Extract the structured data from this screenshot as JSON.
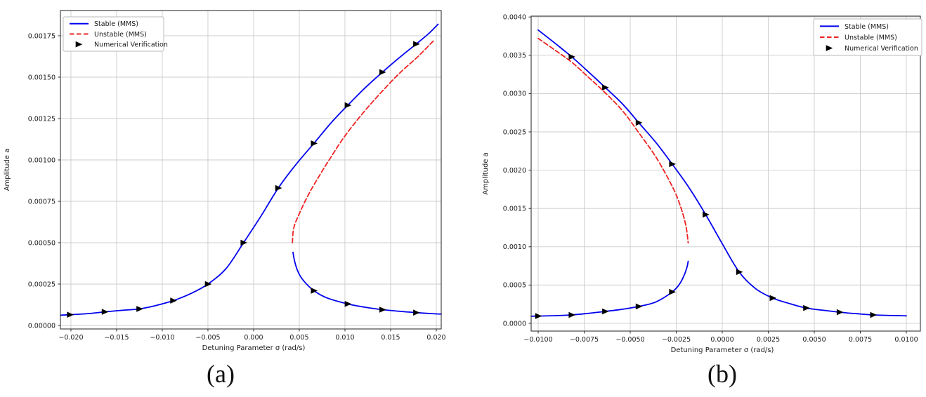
{
  "captions": {
    "a": "(a)",
    "b": "(b)"
  },
  "colors": {
    "stable": "#0000ee",
    "unstable": "#ee2222",
    "marker": "#000000",
    "grid": "#cccccc",
    "spine": "#333333",
    "text": "#1a1a1a"
  },
  "legend": {
    "items": [
      {
        "label": "Stable (MMS)",
        "style": "line",
        "color": "#0000ee"
      },
      {
        "label": "Unstable (MMS)",
        "style": "dashed",
        "color": "#ee2222"
      },
      {
        "label": "Numerical Verification",
        "style": "marker",
        "color": "#000000"
      }
    ]
  },
  "chart_data": [
    {
      "id": "a",
      "type": "line",
      "title": "",
      "xlabel": "Detuning Parameter σ (rad/s)",
      "ylabel": "Amplitude a",
      "xlim": [
        -0.02115,
        0.02054
      ],
      "ylim": [
        -2.12e-05,
        0.0019025
      ],
      "grid": true,
      "legend_position": "upper-left",
      "xticks": [
        -0.02,
        -0.015,
        -0.01,
        -0.005,
        0.0,
        0.005,
        0.01,
        0.015,
        0.02
      ],
      "xtick_labels": [
        "−0.020",
        "−0.015",
        "−0.010",
        "−0.005",
        "0.000",
        "0.005",
        "0.010",
        "0.015",
        "0.020"
      ],
      "yticks": [
        0.0,
        0.00025,
        0.0005,
        0.00075,
        0.001,
        0.00125,
        0.0015,
        0.00175
      ],
      "ytick_labels": [
        "0.00000",
        "0.00025",
        "0.00050",
        "0.00075",
        "0.00100",
        "0.00125",
        "0.00150",
        "0.00175"
      ],
      "series": [
        {
          "name": "Stable (MMS) upper branch",
          "kind": "line",
          "color": "#0000ee",
          "dash": null,
          "width": 1.8,
          "points": [
            [
              -0.02115,
              6.2e-05
            ],
            [
              -0.0201,
              6.5e-05
            ],
            [
              -0.018,
              7.2e-05
            ],
            [
              -0.0163,
              8.2e-05
            ],
            [
              -0.0145,
              9.1e-05
            ],
            [
              -0.0125,
              0.0001
            ],
            [
              -0.0106,
              0.000122
            ],
            [
              -0.0088,
              0.00015
            ],
            [
              -0.0069,
              0.000192
            ],
            [
              -0.005,
              0.00025
            ],
            [
              -0.003,
              0.000345
            ],
            [
              -0.0011,
              0.0005
            ],
            [
              0.0008,
              0.00066
            ],
            [
              0.0027,
              0.00083
            ],
            [
              0.0046,
              0.00097
            ],
            [
              0.0066,
              0.0011
            ],
            [
              0.0085,
              0.001225
            ],
            [
              0.0103,
              0.00133
            ],
            [
              0.0122,
              0.001435
            ],
            [
              0.0141,
              0.00153
            ],
            [
              0.016,
              0.00162
            ],
            [
              0.0178,
              0.0017
            ],
            [
              0.0192,
              0.001765
            ],
            [
              0.0202,
              0.00182
            ]
          ]
        },
        {
          "name": "Stable (MMS) lower branch",
          "kind": "line",
          "color": "#0000ee",
          "dash": null,
          "width": 1.8,
          "points": [
            [
              0.00431,
              0.000442
            ],
            [
              0.0045,
              0.000385
            ],
            [
              0.0049,
              0.00032
            ],
            [
              0.0055,
              0.000268
            ],
            [
              0.0066,
              0.00021
            ],
            [
              0.008,
              0.000167
            ],
            [
              0.0103,
              0.00013
            ],
            [
              0.0122,
              0.00011
            ],
            [
              0.0141,
              9.55e-05
            ],
            [
              0.016,
              8.55e-05
            ],
            [
              0.0178,
              7.75e-05
            ],
            [
              0.0195,
              7.15e-05
            ],
            [
              0.02054,
              6.85e-05
            ]
          ]
        },
        {
          "name": "Unstable (MMS)",
          "kind": "line",
          "color": "#ee2222",
          "dash": [
            6.5,
            3.5
          ],
          "width": 1.8,
          "points": [
            [
              0.00425,
              0.0005
            ],
            [
              0.0044,
              0.00059
            ],
            [
              0.005,
              0.000675
            ],
            [
              0.006,
              0.00079
            ],
            [
              0.0072,
              0.000905
            ],
            [
              0.0085,
              0.00102
            ],
            [
              0.01,
              0.001145
            ],
            [
              0.012,
              0.001285
            ],
            [
              0.014,
              0.00141
            ],
            [
              0.016,
              0.001525
            ],
            [
              0.018,
              0.001625
            ],
            [
              0.0197,
              0.00172
            ]
          ]
        },
        {
          "name": "Numerical Verification upper",
          "kind": "scatter",
          "marker": "triangle-right",
          "color": "#000000",
          "points": [
            [
              -0.0201,
              6.5e-05
            ],
            [
              -0.0163,
              8.2e-05
            ],
            [
              -0.0125,
              0.0001
            ],
            [
              -0.0088,
              0.00015
            ],
            [
              -0.005,
              0.00025
            ],
            [
              -0.0011,
              0.0005
            ],
            [
              0.0027,
              0.00083
            ],
            [
              0.0066,
              0.0011
            ],
            [
              0.0103,
              0.00133
            ],
            [
              0.0141,
              0.00153
            ],
            [
              0.0178,
              0.0017
            ]
          ]
        },
        {
          "name": "Numerical Verification lower",
          "kind": "scatter",
          "marker": "triangle-right",
          "color": "#000000",
          "points": [
            [
              0.0066,
              0.00021
            ],
            [
              0.0103,
              0.00013
            ],
            [
              0.0141,
              9.55e-05
            ],
            [
              0.0178,
              7.75e-05
            ]
          ]
        }
      ]
    },
    {
      "id": "b",
      "type": "line",
      "title": "",
      "xlabel": "Detuning Parameter σ (rad/s)",
      "ylabel": "Amplitude a",
      "xlim": [
        -0.010382,
        0.010763
      ],
      "ylim": [
        -0.000101,
        0.004011
      ],
      "grid": true,
      "legend_position": "upper-right",
      "xticks": [
        -0.01,
        -0.0075,
        -0.005,
        -0.0025,
        0.0,
        0.0025,
        0.005,
        0.0075,
        0.01
      ],
      "xtick_labels": [
        "−0.0100",
        "−0.0075",
        "−0.0050",
        "−0.0025",
        "0.0000",
        "0.0025",
        "0.0050",
        "0.0075",
        "0.0100"
      ],
      "yticks": [
        0.0,
        0.0005,
        0.001,
        0.0015,
        0.002,
        0.0025,
        0.003,
        0.0035,
        0.004
      ],
      "ytick_labels": [
        "0.0000",
        "0.0005",
        "0.0010",
        "0.0015",
        "0.0020",
        "0.0025",
        "0.0030",
        "0.0035",
        "0.0040"
      ],
      "series": [
        {
          "name": "Stable (MMS) upper branch",
          "kind": "line",
          "color": "#0000ee",
          "dash": null,
          "width": 1.8,
          "points": [
            [
              -0.01,
              0.00383
            ],
            [
              -0.0091,
              0.00366
            ],
            [
              -0.00818,
              0.00348
            ],
            [
              -0.0073,
              0.00329
            ],
            [
              -0.00636,
              0.00308
            ],
            [
              -0.0054,
              0.00286
            ],
            [
              -0.00454,
              0.00262
            ],
            [
              -0.0036,
              0.00236
            ],
            [
              -0.00272,
              0.00208
            ],
            [
              -0.0018,
              0.00177
            ],
            [
              -0.0009,
              0.00142
            ],
            [
              0.0,
              0.00104
            ],
            [
              0.00092,
              0.00067
            ],
            [
              0.0018,
              0.000455
            ],
            [
              0.00274,
              0.00033
            ],
            [
              0.0037,
              0.000255
            ],
            [
              0.00456,
              0.0002
            ],
            [
              0.0055,
              0.00017
            ],
            [
              0.00638,
              0.000145
            ],
            [
              0.0073,
              0.000126
            ],
            [
              0.0082,
              0.00011
            ],
            [
              0.01,
              9.75e-05
            ]
          ]
        },
        {
          "name": "Stable (MMS) lower branch",
          "kind": "line",
          "color": "#0000ee",
          "dash": null,
          "width": 1.8,
          "points": [
            [
              -0.010382,
              9.35e-05
            ],
            [
              -0.01,
              9.5e-05
            ],
            [
              -0.0091,
              0.0001
            ],
            [
              -0.00818,
              0.00011
            ],
            [
              -0.0073,
              0.00013
            ],
            [
              -0.00636,
              0.000155
            ],
            [
              -0.0054,
              0.000185
            ],
            [
              -0.00454,
              0.00022
            ],
            [
              -0.0036,
              0.00028
            ],
            [
              -0.00272,
              0.00041
            ],
            [
              -0.0023,
              0.00052
            ],
            [
              -0.00205,
              0.00064
            ],
            [
              -0.00191,
              0.00074
            ],
            [
              -0.00185,
              0.00081
            ]
          ]
        },
        {
          "name": "Unstable (MMS)",
          "kind": "line",
          "color": "#ee2222",
          "dash": [
            6.5,
            3.5
          ],
          "width": 1.8,
          "points": [
            [
              -0.01,
              0.00372
            ],
            [
              -0.0091,
              0.00357
            ],
            [
              -0.00818,
              0.00341
            ],
            [
              -0.0073,
              0.00322
            ],
            [
              -0.00636,
              0.00301
            ],
            [
              -0.0054,
              0.00277
            ],
            [
              -0.00454,
              0.00249
            ],
            [
              -0.0036,
              0.00217
            ],
            [
              -0.00272,
              0.00179
            ],
            [
              -0.0023,
              0.00155
            ],
            [
              -0.00198,
              0.00128
            ],
            [
              -0.00185,
              0.00105
            ]
          ]
        },
        {
          "name": "Numerical Verification upper",
          "kind": "scatter",
          "marker": "triangle-right",
          "color": "#000000",
          "points": [
            [
              -0.00818,
              0.00348
            ],
            [
              -0.00636,
              0.00308
            ],
            [
              -0.00454,
              0.00262
            ],
            [
              -0.00272,
              0.00208
            ],
            [
              -0.0009,
              0.00142
            ],
            [
              0.00092,
              0.00067
            ],
            [
              0.00274,
              0.00033
            ],
            [
              0.00456,
              0.0002
            ],
            [
              0.00638,
              0.000145
            ],
            [
              0.0082,
              0.00011
            ]
          ]
        },
        {
          "name": "Numerical Verification lower",
          "kind": "scatter",
          "marker": "triangle-right",
          "color": "#000000",
          "points": [
            [
              -0.01,
              9.5e-05
            ],
            [
              -0.00818,
              0.00011
            ],
            [
              -0.00636,
              0.000155
            ],
            [
              -0.00454,
              0.00022
            ],
            [
              -0.00272,
              0.00041
            ]
          ]
        }
      ]
    }
  ]
}
